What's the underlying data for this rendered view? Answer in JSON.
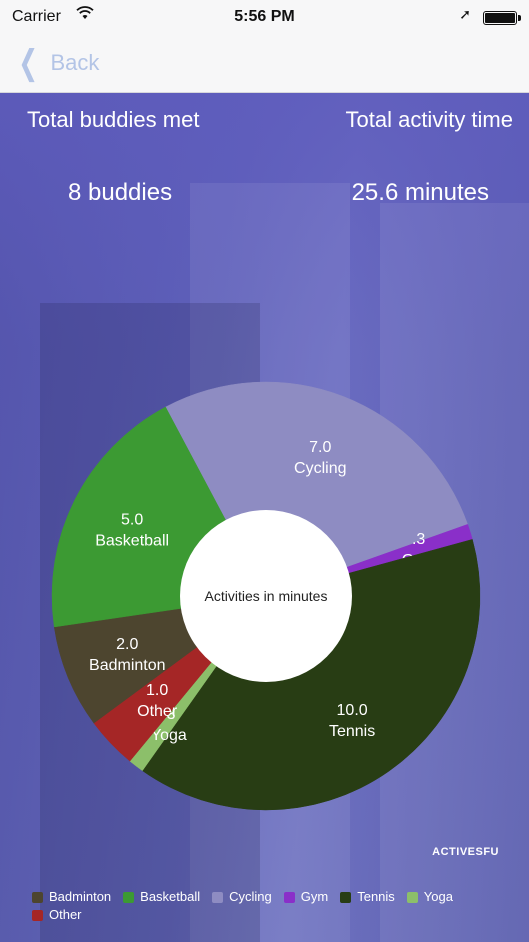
{
  "status_bar": {
    "carrier": "Carrier",
    "time": "5:56 PM"
  },
  "nav": {
    "back_label": "Back"
  },
  "stats": {
    "buddies_title": "Total buddies met",
    "buddies_value": "8 buddies",
    "activity_title": "Total activity time",
    "activity_value": "25.6 minutes"
  },
  "brand_text": "ACTIVESFU",
  "chart_data": {
    "type": "pie",
    "center_text": "Activities in minutes",
    "slices": [
      {
        "label": "Cycling",
        "value": 7.0,
        "value_text": "7.0",
        "color": "#8e8cc2"
      },
      {
        "label": "Gym",
        "value": 0.3,
        "value_text": ".3",
        "color": "#8a2fc9"
      },
      {
        "label": "Tennis",
        "value": 10.0,
        "value_text": "10.0",
        "color": "#283d14"
      },
      {
        "label": "Yoga",
        "value": 0.3,
        "value_text": ".3",
        "color": "#8cbf6a"
      },
      {
        "label": "Other",
        "value": 1.0,
        "value_text": "1.0",
        "color": "#a52626"
      },
      {
        "label": "Badminton",
        "value": 2.0,
        "value_text": "2.0",
        "color": "#4d452f"
      },
      {
        "label": "Basketball",
        "value": 5.0,
        "value_text": "5.0",
        "color": "#3c9a33"
      }
    ],
    "legend": [
      {
        "label": "Badminton",
        "color": "#4d452f"
      },
      {
        "label": "Basketball",
        "color": "#3c9a33"
      },
      {
        "label": "Cycling",
        "color": "#8e8cc2"
      },
      {
        "label": "Gym",
        "color": "#8a2fc9"
      },
      {
        "label": "Tennis",
        "color": "#283d14"
      },
      {
        "label": "Yoga",
        "color": "#8cbf6a"
      },
      {
        "label": "Other",
        "color": "#a52626"
      }
    ]
  }
}
